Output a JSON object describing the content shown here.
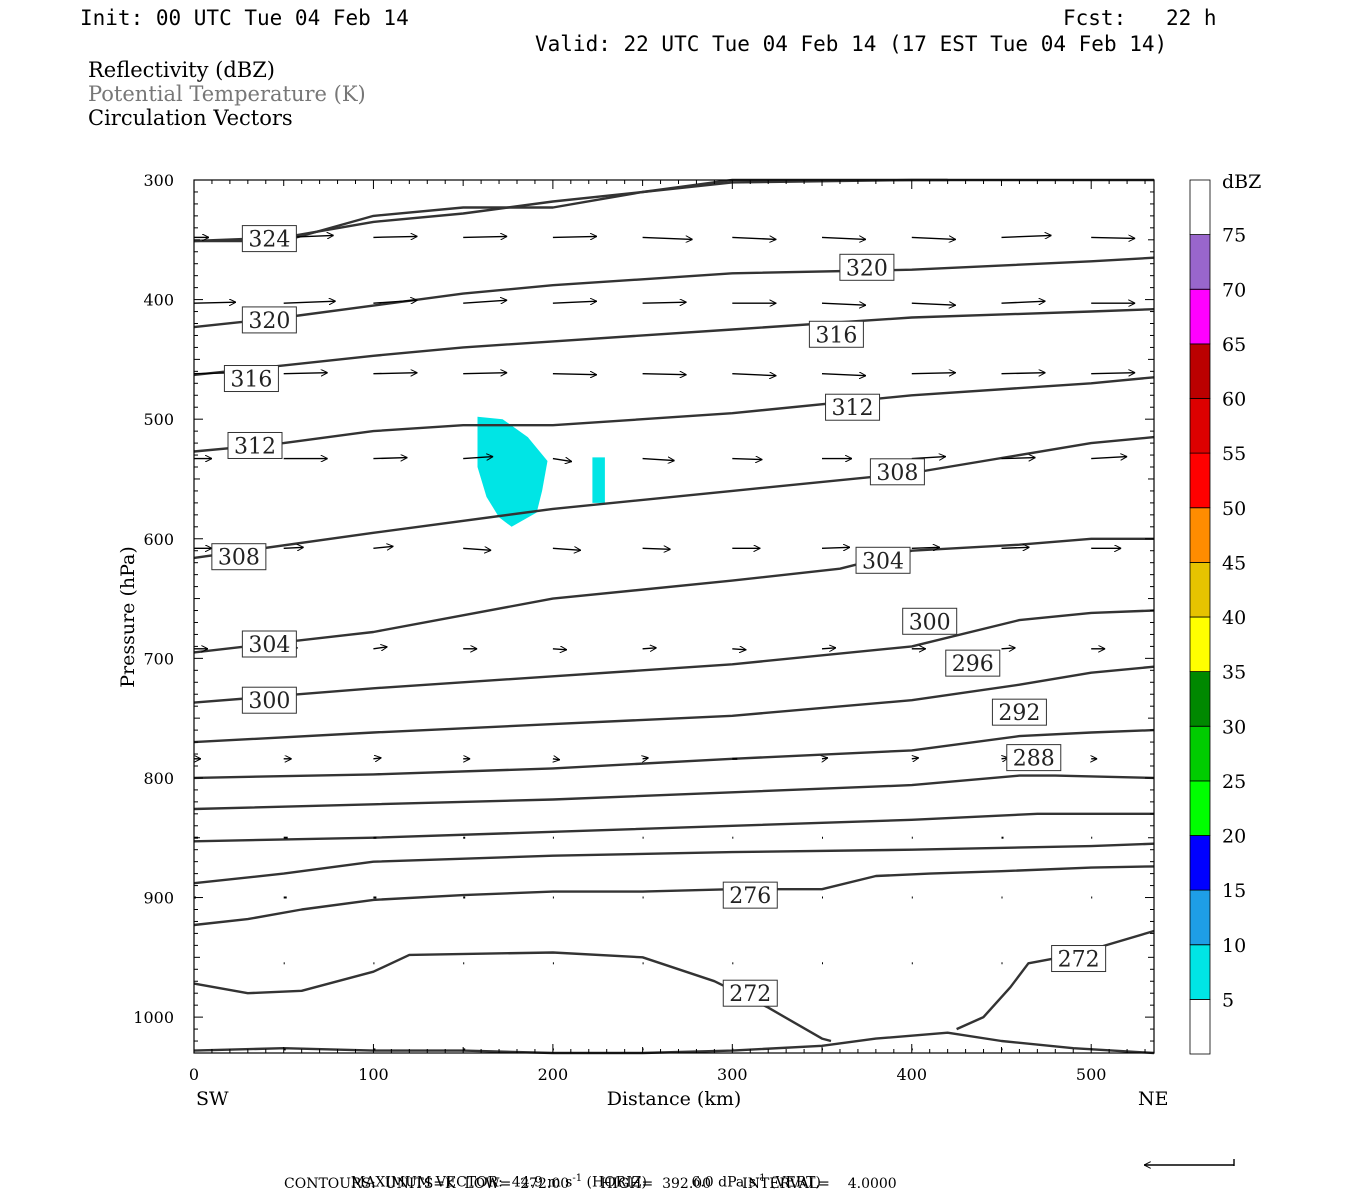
{
  "header": {
    "init": "Init: 00 UTC Tue 04 Feb 14",
    "fcst_label": "Fcst:",
    "fcst_value": "22 h",
    "valid": "Valid: 22 UTC Tue 04 Feb 14 (17 EST Tue 04 Feb 14)",
    "field1": "Reflectivity (dBZ)",
    "field2": "Potential Temperature (K)",
    "field3": "Circulation Vectors"
  },
  "chart_data": {
    "type": "cross-section",
    "xlabel": "Distance (km)",
    "ylabel": "Pressure (hPa)",
    "xlim": [
      0,
      535
    ],
    "ylim": [
      1030,
      300
    ],
    "x_ticks": [
      0,
      100,
      200,
      300,
      400,
      500
    ],
    "y_ticks": [
      300,
      400,
      500,
      600,
      700,
      800,
      900,
      1000
    ],
    "x_tick_labels": [
      "0",
      "100",
      "200",
      "300",
      "400",
      "500"
    ],
    "y_tick_labels": [
      "300",
      "400",
      "500",
      "600",
      "700",
      "800",
      "900",
      "1000"
    ],
    "left_end_label": "SW",
    "right_end_label": "NE",
    "colorbar": {
      "title": "dBZ",
      "labels": [
        "5",
        "10",
        "15",
        "20",
        "25",
        "30",
        "35",
        "40",
        "45",
        "50",
        "55",
        "60",
        "65",
        "70",
        "75"
      ],
      "colors": [
        "#ffffff",
        "#00e5e5",
        "#1e9ee6",
        "#0000ff",
        "#00ff00",
        "#00cc00",
        "#008800",
        "#ffff00",
        "#e6c300",
        "#ff8c00",
        "#ff0000",
        "#dd0000",
        "#bb0000",
        "#ff00ff",
        "#9966cc",
        "#ffffff"
      ]
    },
    "isentropes": [
      {
        "label": "272",
        "x": [
          0,
          30,
          60,
          100,
          120,
          200,
          250,
          290,
          320,
          350,
          355
        ],
        "p": [
          972,
          980,
          978,
          962,
          948,
          946,
          950,
          970,
          992,
          1018,
          1020
        ]
      },
      {
        "label": "272",
        "x": [
          425,
          440,
          455,
          465,
          490,
          535
        ],
        "p": [
          1010,
          1000,
          975,
          955,
          948,
          928
        ]
      },
      {
        "label": "",
        "x": [
          0,
          50,
          100,
          150,
          200,
          250,
          300,
          350,
          380,
          420,
          450,
          490,
          535
        ],
        "p": [
          1028,
          1026,
          1028,
          1028,
          1030,
          1030,
          1028,
          1024,
          1018,
          1013,
          1020,
          1026,
          1030
        ]
      },
      {
        "label": "",
        "x": [
          0,
          30,
          60,
          100,
          150,
          200,
          250,
          300,
          350,
          380,
          410,
          450,
          500,
          535
        ],
        "p": [
          923,
          918,
          910,
          902,
          898,
          895,
          895,
          893,
          893,
          882,
          880,
          878,
          875,
          874
        ]
      },
      {
        "label": "276",
        "x": [
          0,
          50,
          100,
          200,
          300,
          400,
          500,
          535
        ],
        "p": [
          888,
          880,
          870,
          865,
          862,
          860,
          857,
          855
        ]
      },
      {
        "label": "",
        "x": [
          0,
          100,
          200,
          300,
          400,
          470,
          500,
          535
        ],
        "p": [
          853,
          850,
          845,
          840,
          835,
          830,
          830,
          830
        ]
      },
      {
        "label": "",
        "x": [
          0,
          100,
          200,
          300,
          400,
          460,
          480,
          535
        ],
        "p": [
          826,
          822,
          818,
          812,
          806,
          798,
          798,
          800
        ]
      },
      {
        "label": "288",
        "x": [
          0,
          100,
          200,
          300,
          400,
          460,
          500,
          535
        ],
        "p": [
          800,
          797,
          792,
          784,
          777,
          765,
          762,
          760
        ]
      },
      {
        "label": "292",
        "x": [
          0,
          100,
          200,
          300,
          400,
          460,
          500,
          535
        ],
        "p": [
          770,
          762,
          755,
          748,
          735,
          722,
          712,
          707
        ]
      },
      {
        "label": "296",
        "x": [
          0,
          100,
          200,
          300,
          400,
          460,
          500,
          535
        ],
        "p": [
          737,
          725,
          715,
          705,
          690,
          668,
          662,
          660
        ]
      },
      {
        "label": "300",
        "x": [
          0,
          100,
          200,
          300,
          360,
          400,
          460,
          500,
          535
        ],
        "p": [
          695,
          678,
          650,
          635,
          625,
          610,
          605,
          600,
          600
        ]
      },
      {
        "label": "304",
        "x": [
          0,
          100,
          200,
          300,
          400,
          500,
          535
        ],
        "p": [
          616,
          595,
          575,
          560,
          545,
          520,
          515
        ]
      },
      {
        "label": "308",
        "x": [
          0,
          50,
          100,
          150,
          200,
          300,
          400,
          500,
          535
        ],
        "p": [
          527,
          520,
          510,
          505,
          505,
          495,
          480,
          470,
          465
        ]
      },
      {
        "label": "312",
        "x": [
          0,
          50,
          100,
          150,
          200,
          300,
          400,
          500,
          535
        ],
        "p": [
          463,
          455,
          447,
          440,
          435,
          425,
          415,
          410,
          408
        ]
      },
      {
        "label": "316",
        "x": [
          0,
          50,
          100,
          150,
          200,
          250,
          300,
          400,
          500,
          535
        ],
        "p": [
          423,
          415,
          405,
          395,
          388,
          383,
          378,
          375,
          368,
          365
        ]
      },
      {
        "label": "320",
        "x": [
          0,
          50,
          100,
          150,
          200,
          250,
          300,
          400,
          500,
          535
        ],
        "p": [
          351,
          348,
          335,
          328,
          318,
          310,
          302,
          300,
          300,
          300
        ]
      },
      {
        "label": "324",
        "x": [
          0,
          50,
          100,
          150,
          200,
          250,
          300,
          350,
          400,
          420
        ],
        "p": [
          351,
          351,
          330,
          323,
          323,
          310,
          300,
          300,
          300,
          300
        ]
      }
    ],
    "contour_labels": [
      {
        "text": "324",
        "x": 42,
        "p": 349
      },
      {
        "text": "320",
        "x": 375,
        "p": 373
      },
      {
        "text": "320",
        "x": 42,
        "p": 417
      },
      {
        "text": "316",
        "x": 358,
        "p": 429
      },
      {
        "text": "316",
        "x": 32,
        "p": 466
      },
      {
        "text": "312",
        "x": 367,
        "p": 490
      },
      {
        "text": "312",
        "x": 34,
        "p": 522
      },
      {
        "text": "308",
        "x": 392,
        "p": 544
      },
      {
        "text": "308",
        "x": 25,
        "p": 615
      },
      {
        "text": "304",
        "x": 384,
        "p": 618
      },
      {
        "text": "300",
        "x": 410,
        "p": 669
      },
      {
        "text": "304",
        "x": 42,
        "p": 688
      },
      {
        "text": "296",
        "x": 434,
        "p": 704
      },
      {
        "text": "300",
        "x": 42,
        "p": 735
      },
      {
        "text": "292",
        "x": 460,
        "p": 745
      },
      {
        "text": "288",
        "x": 468,
        "p": 783
      },
      {
        "text": "276",
        "x": 310,
        "p": 898
      },
      {
        "text": "272",
        "x": 493,
        "p": 951
      },
      {
        "text": "272",
        "x": 310,
        "p": 980
      }
    ],
    "reflectivity_areas": [
      {
        "dbz_range": "5-10",
        "x": [
          158,
          172,
          186,
          197,
          194,
          191,
          177,
          170,
          163,
          158,
          158
        ],
        "p": [
          498,
          500,
          515,
          535,
          560,
          578,
          590,
          582,
          565,
          540,
          498
        ]
      },
      {
        "dbz_range": "5-10",
        "x": [
          222,
          229,
          229,
          222,
          222
        ],
        "p": [
          532,
          532,
          570,
          570,
          532
        ]
      }
    ],
    "vectors": [
      {
        "p": 348,
        "x": [
          0,
          50,
          100,
          150,
          200,
          250,
          300,
          350,
          400,
          450,
          500
        ],
        "u": [
          15,
          50,
          44,
          44,
          44,
          50,
          44,
          44,
          44,
          50,
          44
        ],
        "v": [
          0,
          2,
          1,
          1,
          1,
          -2,
          -2,
          -2,
          -2,
          2,
          -1
        ]
      },
      {
        "p": 403,
        "x": [
          0,
          50,
          100,
          150,
          200,
          250,
          300,
          350,
          400,
          450,
          500
        ],
        "u": [
          42,
          52,
          44,
          44,
          44,
          44,
          44,
          44,
          44,
          44,
          44
        ],
        "v": [
          1,
          2,
          3,
          3,
          2,
          1,
          0,
          -2,
          -2,
          2,
          0
        ]
      },
      {
        "p": 462,
        "x": [
          0,
          50,
          100,
          150,
          200,
          250,
          300,
          350,
          400,
          450,
          500
        ],
        "u": [
          44,
          44,
          44,
          44,
          44,
          44,
          44,
          44,
          44,
          44,
          44
        ],
        "v": [
          1,
          1,
          1,
          1,
          -1,
          -1,
          -2,
          -2,
          1,
          1,
          1
        ]
      },
      {
        "p": 533,
        "x": [
          0,
          50,
          100,
          150,
          200,
          250,
          300,
          350,
          400,
          450,
          500
        ],
        "u": [
          18,
          44,
          34,
          30,
          19,
          32,
          30,
          30,
          34,
          34,
          36
        ],
        "v": [
          0,
          0,
          1,
          2,
          -3,
          -2,
          -1,
          0,
          2,
          1,
          2
        ]
      },
      {
        "p": 608,
        "x": [
          0,
          50,
          100,
          150,
          200,
          250,
          300,
          350,
          400,
          450,
          500
        ],
        "u": [
          18,
          20,
          20,
          28,
          28,
          28,
          28,
          28,
          28,
          28,
          30
        ],
        "v": [
          0,
          1,
          2,
          -2,
          -2,
          -1,
          0,
          1,
          1,
          1,
          0
        ]
      },
      {
        "p": 692,
        "x": [
          0,
          50,
          100,
          150,
          200,
          250,
          300,
          350,
          400,
          450,
          500
        ],
        "u": [
          14,
          14,
          14,
          14,
          14,
          14,
          14,
          14,
          14,
          14,
          14
        ],
        "v": [
          0,
          1,
          2,
          0,
          -1,
          1,
          -1,
          1,
          0,
          1,
          0
        ]
      },
      {
        "p": 784,
        "x": [
          0,
          50,
          100,
          150,
          200,
          250,
          300,
          350,
          400,
          450,
          500
        ],
        "u": [
          7,
          8,
          8,
          7,
          7,
          6,
          5,
          6,
          7,
          7,
          6
        ],
        "v": [
          0,
          0,
          1,
          0,
          -1,
          1,
          0,
          1,
          1,
          1,
          0
        ]
      },
      {
        "p": 850,
        "x": [
          0,
          50,
          100,
          150,
          200,
          250,
          300,
          350,
          400,
          450,
          500
        ],
        "u": [
          4,
          4,
          3,
          2,
          1,
          1,
          1,
          1,
          1,
          2,
          1
        ],
        "v": [
          0,
          0,
          0,
          0,
          0,
          0,
          0,
          0,
          0,
          0,
          0
        ]
      },
      {
        "p": 900,
        "x": [
          0,
          50,
          100,
          150,
          200,
          250,
          300,
          350,
          400,
          450,
          500
        ],
        "u": [
          2,
          3,
          3,
          2,
          1,
          1,
          1,
          1,
          1,
          1,
          1
        ],
        "v": [
          0,
          0,
          0,
          0,
          0,
          0,
          0,
          0,
          0,
          0,
          0
        ]
      },
      {
        "p": 955,
        "x": [
          50,
          100,
          150,
          200,
          250,
          300,
          350,
          400,
          450,
          500
        ],
        "u": [
          1,
          1,
          1,
          1,
          1,
          1,
          1,
          1,
          1,
          1
        ],
        "v": [
          0,
          0,
          0,
          0,
          0,
          0,
          0,
          0,
          0,
          0
        ]
      },
      {
        "p": 1027,
        "x": [
          50,
          100,
          150,
          200,
          250,
          300,
          350,
          400,
          450,
          500
        ],
        "u": [
          2,
          2,
          2,
          1,
          1,
          1,
          1,
          1,
          1,
          1
        ],
        "v": [
          0,
          0,
          0,
          0,
          0,
          0,
          0,
          0,
          0,
          0
        ]
      }
    ]
  },
  "footer": {
    "max_vector": "MAXIMUM VECTOR:  44.9 m s",
    "max_vector_exp1": "-1",
    "max_vector_mid": " (HORIZ)          6.0 dPa s",
    "max_vector_exp2": "-1",
    "max_vector_end": " (VERT)",
    "contours": "CONTOURS:  UNITS=K  LOW=  272.00       HIGH=  392.00       INTERVAL=    4.0000"
  }
}
